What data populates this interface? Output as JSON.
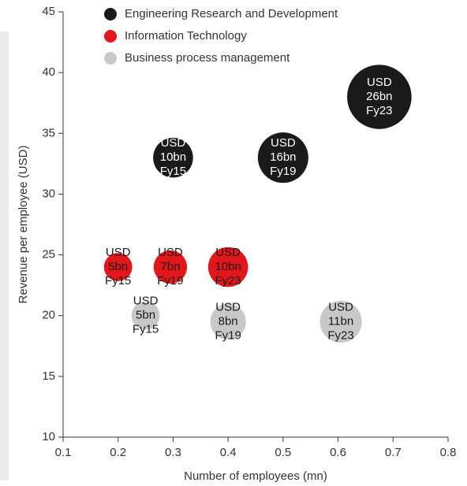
{
  "chart_data": {
    "type": "bubble",
    "x_label": "Number of employees (mn)",
    "y_label": "Revenue per employee (USD)",
    "xlim": [
      0.1,
      0.8
    ],
    "xticks": [
      0.1,
      0.2,
      0.3,
      0.4,
      0.5,
      0.6,
      0.7,
      0.8
    ],
    "ylim": [
      10,
      45
    ],
    "yticks": [
      10,
      15,
      20,
      25,
      30,
      35,
      40,
      45
    ],
    "series": [
      {
        "name": "Engineering Research and Development",
        "color": "#1a1a1a",
        "label_color": "#ffffff",
        "x": [
          0.3,
          0.5,
          0.675
        ],
        "values": [
          33,
          33,
          38
        ],
        "sizes": [
          10,
          16,
          26
        ],
        "value_labels": [
          [
            "USD",
            "10bn",
            "Fy15"
          ],
          [
            "USD",
            "16bn",
            "Fy19"
          ],
          [
            "USD",
            "26bn",
            "Fy23"
          ]
        ]
      },
      {
        "name": "Information Technology",
        "color": "#e3161b",
        "label_color": "#1a1a1a",
        "x": [
          0.2,
          0.295,
          0.4
        ],
        "values": [
          24,
          24,
          24
        ],
        "sizes": [
          5,
          7,
          10
        ],
        "value_labels": [
          [
            "USD",
            "5bn",
            "Fy15"
          ],
          [
            "USD",
            "7bn",
            "Fy19"
          ],
          [
            "USD",
            "10bn",
            "Fy23"
          ]
        ]
      },
      {
        "name": "Business process management",
        "color": "#c8c8c8",
        "label_color": "#1a1a1a",
        "x": [
          0.25,
          0.4,
          0.605
        ],
        "values": [
          20,
          19.5,
          19.5
        ],
        "sizes": [
          5,
          8,
          11
        ],
        "value_labels": [
          [
            "USD",
            "5bn",
            "Fy15"
          ],
          [
            "USD",
            "8bn",
            "Fy19"
          ],
          [
            "USD",
            "11bn",
            "Fy23"
          ]
        ]
      }
    ]
  }
}
